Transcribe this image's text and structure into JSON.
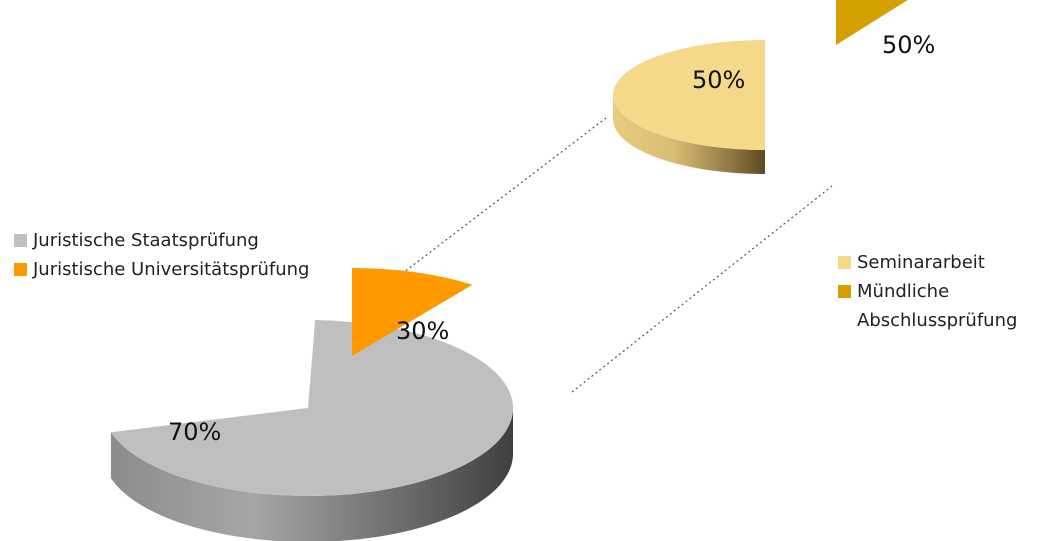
{
  "chart_data": [
    {
      "type": "pie",
      "slices": [
        {
          "label": "Juristische Staatsprüfung",
          "value": 70,
          "display": "70%",
          "color": "#bfbfbf"
        },
        {
          "label": "Juristische Universitätsprüfung",
          "value": 30,
          "display": "30%",
          "color": "#ff9900"
        }
      ],
      "legend": "left"
    },
    {
      "type": "pie",
      "slices": [
        {
          "label": "Seminararbeit",
          "value": 50,
          "display": "50%",
          "color": "#f5d98a"
        },
        {
          "label": "Mündliche Abschlussprüfung",
          "value": 50,
          "display": "50%",
          "color": "#d4a000"
        }
      ],
      "legend": "right"
    }
  ],
  "legend_left": [
    {
      "label": "Juristische Staatsprüfung",
      "color": "#bfbfbf"
    },
    {
      "label": "Juristische Universitätsprüfung",
      "color": "#ff9900"
    }
  ],
  "legend_right": [
    {
      "label": "Seminararbeit",
      "color": "#f5d98a"
    },
    {
      "label": "Mündliche Abschlussprüfung",
      "color": "#d4a000"
    }
  ]
}
